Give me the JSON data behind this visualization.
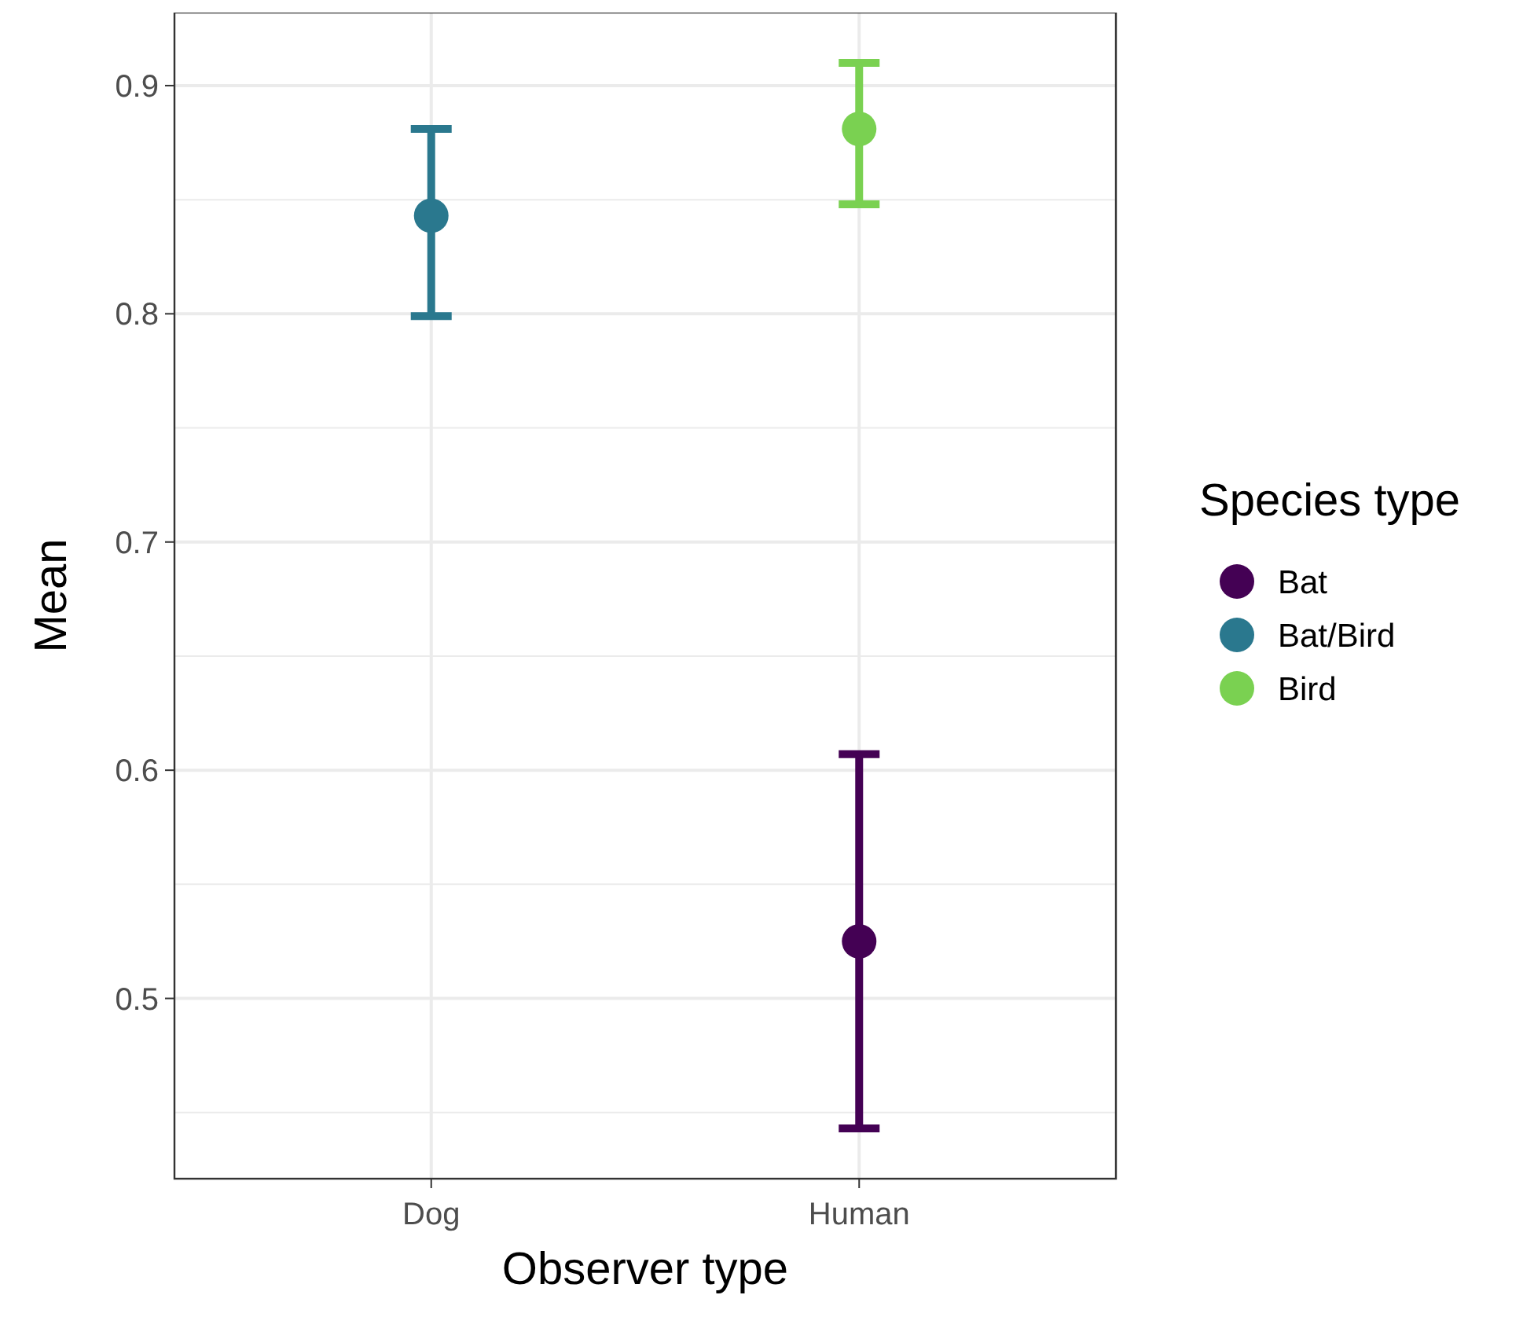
{
  "chart_data": {
    "type": "scatter",
    "xlabel": "Observer type",
    "ylabel": "Mean",
    "legend_title": "Species type",
    "categories": [
      "Dog",
      "Human"
    ],
    "series": [
      {
        "name": "Bat",
        "color": "#440154",
        "values": [
          null,
          0.525
        ],
        "errors": [
          null,
          [
            0.443,
            0.607
          ]
        ]
      },
      {
        "name": "Bat/Bird",
        "color": "#2a788e",
        "values": [
          0.843,
          null
        ],
        "errors": [
          [
            0.799,
            0.881
          ],
          null
        ]
      },
      {
        "name": "Bird",
        "color": "#7ad151",
        "values": [
          null,
          0.881
        ],
        "errors": [
          null,
          [
            0.848,
            0.91
          ]
        ]
      }
    ],
    "ylim": [
      0.421,
      0.932
    ],
    "yticks": [
      {
        "value": 0.45,
        "label": null
      },
      0.5,
      {
        "value": 0.55,
        "label": null
      },
      0.6,
      {
        "value": 0.65,
        "label": null
      },
      0.7,
      {
        "value": 0.75,
        "label": null
      },
      0.8,
      {
        "value": 0.85,
        "label": null
      },
      0.9
    ],
    "grid": true,
    "legend": "right",
    "marker": "circle"
  }
}
